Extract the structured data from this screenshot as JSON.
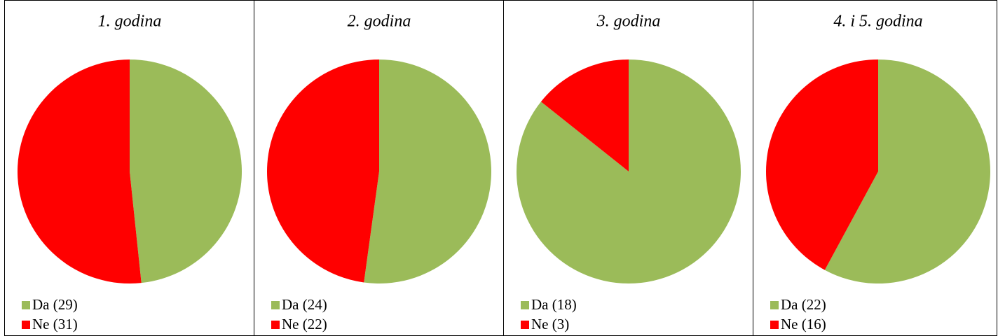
{
  "chart_data": [
    {
      "type": "pie",
      "title": "1. godina",
      "categories": [
        "Da (29)",
        "Ne (31)"
      ],
      "values": [
        29,
        31
      ],
      "colors": [
        "#9bbb59",
        "#ff0000"
      ]
    },
    {
      "type": "pie",
      "title": "2. godina",
      "categories": [
        "Da (24)",
        "Ne (22)"
      ],
      "values": [
        24,
        22
      ],
      "colors": [
        "#9bbb59",
        "#ff0000"
      ]
    },
    {
      "type": "pie",
      "title": "3. godina",
      "categories": [
        "Da (18)",
        "Ne (3)"
      ],
      "values": [
        18,
        3
      ],
      "colors": [
        "#9bbb59",
        "#ff0000"
      ]
    },
    {
      "type": "pie",
      "title": "4. i 5. godina",
      "categories": [
        "Da (22)",
        "Ne (16)"
      ],
      "values": [
        22,
        16
      ],
      "colors": [
        "#9bbb59",
        "#ff0000"
      ]
    }
  ]
}
